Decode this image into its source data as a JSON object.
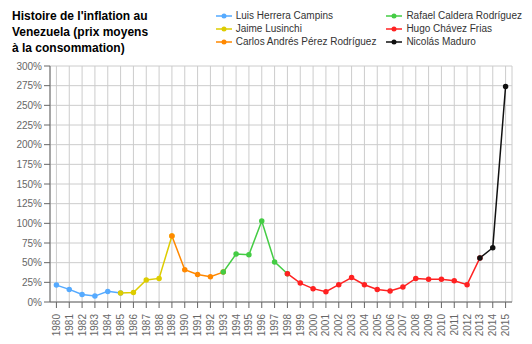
{
  "chart_data": {
    "type": "line",
    "title": "Histoire de l'inflation au\nVenezuela (prix moyens\nà la consommation)",
    "x": [
      1980,
      1981,
      1982,
      1983,
      1984,
      1985,
      1986,
      1987,
      1988,
      1989,
      1990,
      1991,
      1992,
      1993,
      1994,
      1995,
      1996,
      1997,
      1998,
      1999,
      2000,
      2001,
      2002,
      2003,
      2004,
      2005,
      2006,
      2007,
      2008,
      2009,
      2010,
      2011,
      2012,
      2013,
      2014,
      2015
    ],
    "series": [
      {
        "name": "Luis Herrera Campins",
        "color": "#55AAFF",
        "marker": "circle",
        "values": [
          21.5,
          16.0,
          9.5,
          7.5,
          13.5,
          11.5,
          null,
          null,
          null,
          null,
          null,
          null,
          null,
          null,
          null,
          null,
          null,
          null,
          null,
          null,
          null,
          null,
          null,
          null,
          null,
          null,
          null,
          null,
          null,
          null,
          null,
          null,
          null,
          null,
          null,
          null
        ]
      },
      {
        "name": "Jaime Lusinchi",
        "color": "#DDCC00",
        "marker": "circle",
        "values": [
          null,
          null,
          null,
          null,
          null,
          11.5,
          12.0,
          28.0,
          30.0,
          84.0,
          null,
          null,
          null,
          null,
          null,
          null,
          null,
          null,
          null,
          null,
          null,
          null,
          null,
          null,
          null,
          null,
          null,
          null,
          null,
          null,
          null,
          null,
          null,
          null,
          null,
          null
        ]
      },
      {
        "name": "Carlos Andrés Pérez Rodríguez",
        "color": "#FF8800",
        "marker": "circle",
        "values": [
          null,
          null,
          null,
          null,
          null,
          null,
          null,
          null,
          null,
          84.0,
          41.0,
          35.0,
          32.0,
          38.0,
          null,
          null,
          null,
          null,
          null,
          null,
          null,
          null,
          null,
          null,
          null,
          null,
          null,
          null,
          null,
          null,
          null,
          null,
          null,
          null,
          null,
          null
        ]
      },
      {
        "name": "Rafael Caldera Rodríguez",
        "color": "#44CC44",
        "marker": "circle",
        "values": [
          null,
          null,
          null,
          null,
          null,
          null,
          null,
          null,
          null,
          null,
          null,
          null,
          null,
          38.0,
          61.0,
          60.0,
          103.0,
          51.0,
          36.0,
          null,
          null,
          null,
          null,
          null,
          null,
          null,
          null,
          null,
          null,
          null,
          null,
          null,
          null,
          null,
          null,
          null
        ]
      },
      {
        "name": "Hugo Chávez Frias",
        "color": "#FF2222",
        "marker": "circle",
        "values": [
          null,
          null,
          null,
          null,
          null,
          null,
          null,
          null,
          null,
          null,
          null,
          null,
          null,
          null,
          null,
          null,
          null,
          null,
          36.0,
          24.0,
          17.0,
          13.0,
          22.0,
          31.0,
          22.0,
          16.0,
          14.0,
          19.0,
          30.0,
          29.0,
          29.0,
          27.0,
          22.0,
          56.0,
          null,
          null
        ]
      },
      {
        "name": "Nicolás Maduro",
        "color": "#111111",
        "marker": "circle",
        "values": [
          null,
          null,
          null,
          null,
          null,
          null,
          null,
          null,
          null,
          null,
          null,
          null,
          null,
          null,
          null,
          null,
          null,
          null,
          null,
          null,
          null,
          null,
          null,
          null,
          null,
          null,
          null,
          null,
          null,
          null,
          null,
          null,
          null,
          56.0,
          69.0,
          274.0
        ]
      }
    ],
    "xlim": [
      1979.5,
      2015.5
    ],
    "xticks": [
      1980,
      1981,
      1982,
      1983,
      1984,
      1985,
      1986,
      1987,
      1988,
      1989,
      1990,
      1991,
      1992,
      1993,
      1994,
      1995,
      1996,
      1997,
      1998,
      1999,
      2000,
      2001,
      2002,
      2003,
      2004,
      2005,
      2006,
      2007,
      2008,
      2009,
      2010,
      2011,
      2012,
      2013,
      2014,
      2015
    ],
    "ylim": [
      0,
      300
    ],
    "yticks": [
      {
        "value": 0,
        "label": "0%"
      },
      {
        "value": 25,
        "label": "25%"
      },
      {
        "value": 50,
        "label": "50%"
      },
      {
        "value": 75,
        "label": "75%"
      },
      {
        "value": 100,
        "label": "100%"
      },
      {
        "value": 125,
        "label": "125%"
      },
      {
        "value": 150,
        "label": "150%"
      },
      {
        "value": 175,
        "label": "175%"
      },
      {
        "value": 200,
        "label": "200%"
      },
      {
        "value": 225,
        "label": "225%"
      },
      {
        "value": 250,
        "label": "250%"
      },
      {
        "value": 275,
        "label": "275%"
      },
      {
        "value": 300,
        "label": "300%"
      }
    ],
    "grid": true,
    "legend": "upper right"
  }
}
